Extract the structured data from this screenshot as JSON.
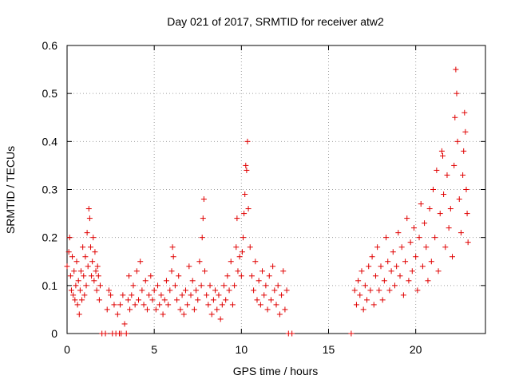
{
  "chart_data": {
    "type": "scatter",
    "title": "Day 021 of 2017, SRMTID for receiver atw2",
    "xlabel": "GPS time / hours",
    "ylabel": "SRMTID / TECUs",
    "xlim": [
      0,
      24
    ],
    "ylim": [
      0,
      0.6
    ],
    "xticks": [
      0,
      5,
      10,
      15,
      20
    ],
    "xtick_labels": [
      "0",
      "5",
      "10",
      "15",
      "20"
    ],
    "yticks": [
      0,
      0.1,
      0.2,
      0.3,
      0.4,
      0.5,
      0.6
    ],
    "ytick_labels": [
      "0",
      "0.1",
      "0.2",
      "0.3",
      "0.4",
      "0.5",
      "0.6"
    ],
    "grid": true,
    "marker": "+",
    "color": "#e00000",
    "series": [
      {
        "name": "SRMTID",
        "points": [
          [
            0.0,
            0.14
          ],
          [
            0.1,
            0.17
          ],
          [
            0.15,
            0.2
          ],
          [
            0.2,
            0.12
          ],
          [
            0.25,
            0.09
          ],
          [
            0.3,
            0.16
          ],
          [
            0.35,
            0.08
          ],
          [
            0.4,
            0.13
          ],
          [
            0.45,
            0.07
          ],
          [
            0.5,
            0.1
          ],
          [
            0.55,
            0.15
          ],
          [
            0.6,
            0.06
          ],
          [
            0.65,
            0.11
          ],
          [
            0.7,
            0.04
          ],
          [
            0.75,
            0.09
          ],
          [
            0.8,
            0.13
          ],
          [
            0.85,
            0.07
          ],
          [
            0.9,
            0.18
          ],
          [
            0.95,
            0.12
          ],
          [
            1.0,
            0.08
          ],
          [
            1.05,
            0.16
          ],
          [
            1.1,
            0.1
          ],
          [
            1.15,
            0.21
          ],
          [
            1.2,
            0.14
          ],
          [
            1.25,
            0.26
          ],
          [
            1.3,
            0.24
          ],
          [
            1.35,
            0.18
          ],
          [
            1.4,
            0.12
          ],
          [
            1.45,
            0.15
          ],
          [
            1.5,
            0.2
          ],
          [
            1.55,
            0.11
          ],
          [
            1.6,
            0.17
          ],
          [
            1.65,
            0.13
          ],
          [
            1.7,
            0.09
          ],
          [
            1.75,
            0.14
          ],
          [
            1.8,
            0.12
          ],
          [
            1.85,
            0.07
          ],
          [
            1.9,
            0.1
          ],
          [
            2.0,
            0.0
          ],
          [
            2.2,
            0.0
          ],
          [
            2.3,
            0.05
          ],
          [
            2.4,
            0.09
          ],
          [
            2.5,
            0.08
          ],
          [
            2.6,
            0.0
          ],
          [
            2.7,
            0.06
          ],
          [
            2.8,
            0.0
          ],
          [
            2.9,
            0.04
          ],
          [
            3.0,
            0.0
          ],
          [
            3.05,
            0.06
          ],
          [
            3.1,
            0.0
          ],
          [
            3.2,
            0.08
          ],
          [
            3.3,
            0.02
          ],
          [
            3.4,
            0.0
          ],
          [
            3.5,
            0.07
          ],
          [
            3.55,
            0.12
          ],
          [
            3.6,
            0.05
          ],
          [
            3.7,
            0.08
          ],
          [
            3.8,
            0.1
          ],
          [
            3.9,
            0.06
          ],
          [
            4.0,
            0.13
          ],
          [
            4.1,
            0.07
          ],
          [
            4.2,
            0.15
          ],
          [
            4.3,
            0.09
          ],
          [
            4.4,
            0.06
          ],
          [
            4.5,
            0.11
          ],
          [
            4.6,
            0.05
          ],
          [
            4.7,
            0.08
          ],
          [
            4.8,
            0.12
          ],
          [
            4.9,
            0.07
          ],
          [
            5.0,
            0.09
          ],
          [
            5.1,
            0.05
          ],
          [
            5.2,
            0.1
          ],
          [
            5.3,
            0.06
          ],
          [
            5.4,
            0.08
          ],
          [
            5.5,
            0.04
          ],
          [
            5.6,
            0.07
          ],
          [
            5.7,
            0.11
          ],
          [
            5.8,
            0.06
          ],
          [
            5.9,
            0.09
          ],
          [
            6.0,
            0.13
          ],
          [
            6.05,
            0.18
          ],
          [
            6.1,
            0.16
          ],
          [
            6.2,
            0.1
          ],
          [
            6.3,
            0.07
          ],
          [
            6.4,
            0.12
          ],
          [
            6.5,
            0.05
          ],
          [
            6.6,
            0.08
          ],
          [
            6.7,
            0.04
          ],
          [
            6.8,
            0.09
          ],
          [
            6.9,
            0.06
          ],
          [
            7.0,
            0.14
          ],
          [
            7.1,
            0.08
          ],
          [
            7.2,
            0.11
          ],
          [
            7.3,
            0.05
          ],
          [
            7.4,
            0.09
          ],
          [
            7.5,
            0.07
          ],
          [
            7.6,
            0.15
          ],
          [
            7.7,
            0.1
          ],
          [
            7.75,
            0.2
          ],
          [
            7.8,
            0.24
          ],
          [
            7.85,
            0.28
          ],
          [
            7.9,
            0.13
          ],
          [
            8.0,
            0.08
          ],
          [
            8.1,
            0.06
          ],
          [
            8.2,
            0.1
          ],
          [
            8.3,
            0.04
          ],
          [
            8.4,
            0.07
          ],
          [
            8.5,
            0.09
          ],
          [
            8.6,
            0.05
          ],
          [
            8.7,
            0.08
          ],
          [
            8.8,
            0.03
          ],
          [
            8.9,
            0.06
          ],
          [
            9.0,
            0.1
          ],
          [
            9.1,
            0.07
          ],
          [
            9.2,
            0.12
          ],
          [
            9.3,
            0.09
          ],
          [
            9.4,
            0.15
          ],
          [
            9.5,
            0.06
          ],
          [
            9.6,
            0.1
          ],
          [
            9.7,
            0.18
          ],
          [
            9.75,
            0.24
          ],
          [
            9.8,
            0.13
          ],
          [
            9.9,
            0.16
          ],
          [
            10.0,
            0.12
          ],
          [
            10.05,
            0.17
          ],
          [
            10.1,
            0.2
          ],
          [
            10.15,
            0.25
          ],
          [
            10.2,
            0.29
          ],
          [
            10.25,
            0.35
          ],
          [
            10.3,
            0.34
          ],
          [
            10.35,
            0.4
          ],
          [
            10.4,
            0.26
          ],
          [
            10.5,
            0.18
          ],
          [
            10.6,
            0.12
          ],
          [
            10.7,
            0.09
          ],
          [
            10.8,
            0.15
          ],
          [
            10.9,
            0.07
          ],
          [
            11.0,
            0.11
          ],
          [
            11.1,
            0.06
          ],
          [
            11.2,
            0.13
          ],
          [
            11.3,
            0.08
          ],
          [
            11.4,
            0.1
          ],
          [
            11.5,
            0.05
          ],
          [
            11.6,
            0.12
          ],
          [
            11.7,
            0.07
          ],
          [
            11.8,
            0.14
          ],
          [
            11.9,
            0.09
          ],
          [
            12.0,
            0.06
          ],
          [
            12.1,
            0.1
          ],
          [
            12.2,
            0.04
          ],
          [
            12.3,
            0.08
          ],
          [
            12.4,
            0.13
          ],
          [
            12.5,
            0.05
          ],
          [
            12.6,
            0.09
          ],
          [
            12.7,
            0.0
          ],
          [
            12.9,
            0.0
          ],
          [
            16.3,
            0.0
          ],
          [
            16.5,
            0.09
          ],
          [
            16.6,
            0.06
          ],
          [
            16.7,
            0.11
          ],
          [
            16.8,
            0.08
          ],
          [
            16.9,
            0.13
          ],
          [
            17.0,
            0.05
          ],
          [
            17.1,
            0.1
          ],
          [
            17.2,
            0.07
          ],
          [
            17.3,
            0.14
          ],
          [
            17.4,
            0.09
          ],
          [
            17.5,
            0.16
          ],
          [
            17.6,
            0.06
          ],
          [
            17.7,
            0.12
          ],
          [
            17.8,
            0.18
          ],
          [
            17.9,
            0.09
          ],
          [
            18.0,
            0.14
          ],
          [
            18.1,
            0.07
          ],
          [
            18.2,
            0.11
          ],
          [
            18.3,
            0.2
          ],
          [
            18.4,
            0.15
          ],
          [
            18.5,
            0.09
          ],
          [
            18.6,
            0.13
          ],
          [
            18.7,
            0.17
          ],
          [
            18.8,
            0.1
          ],
          [
            18.9,
            0.14
          ],
          [
            19.0,
            0.21
          ],
          [
            19.1,
            0.12
          ],
          [
            19.2,
            0.18
          ],
          [
            19.3,
            0.08
          ],
          [
            19.4,
            0.15
          ],
          [
            19.5,
            0.24
          ],
          [
            19.6,
            0.11
          ],
          [
            19.7,
            0.19
          ],
          [
            19.8,
            0.13
          ],
          [
            19.9,
            0.22
          ],
          [
            20.0,
            0.16
          ],
          [
            20.1,
            0.09
          ],
          [
            20.2,
            0.2
          ],
          [
            20.3,
            0.27
          ],
          [
            20.4,
            0.14
          ],
          [
            20.5,
            0.23
          ],
          [
            20.6,
            0.18
          ],
          [
            20.7,
            0.11
          ],
          [
            20.8,
            0.26
          ],
          [
            20.9,
            0.15
          ],
          [
            21.0,
            0.3
          ],
          [
            21.1,
            0.2
          ],
          [
            21.2,
            0.34
          ],
          [
            21.3,
            0.13
          ],
          [
            21.4,
            0.25
          ],
          [
            21.5,
            0.38
          ],
          [
            21.55,
            0.37
          ],
          [
            21.6,
            0.29
          ],
          [
            21.7,
            0.18
          ],
          [
            21.8,
            0.33
          ],
          [
            21.9,
            0.22
          ],
          [
            22.0,
            0.26
          ],
          [
            22.1,
            0.16
          ],
          [
            22.2,
            0.35
          ],
          [
            22.25,
            0.45
          ],
          [
            22.3,
            0.55
          ],
          [
            22.35,
            0.5
          ],
          [
            22.4,
            0.4
          ],
          [
            22.5,
            0.28
          ],
          [
            22.6,
            0.21
          ],
          [
            22.7,
            0.33
          ],
          [
            22.75,
            0.38
          ],
          [
            22.8,
            0.46
          ],
          [
            22.85,
            0.42
          ],
          [
            22.9,
            0.3
          ],
          [
            22.95,
            0.25
          ],
          [
            23.0,
            0.19
          ]
        ]
      }
    ]
  }
}
